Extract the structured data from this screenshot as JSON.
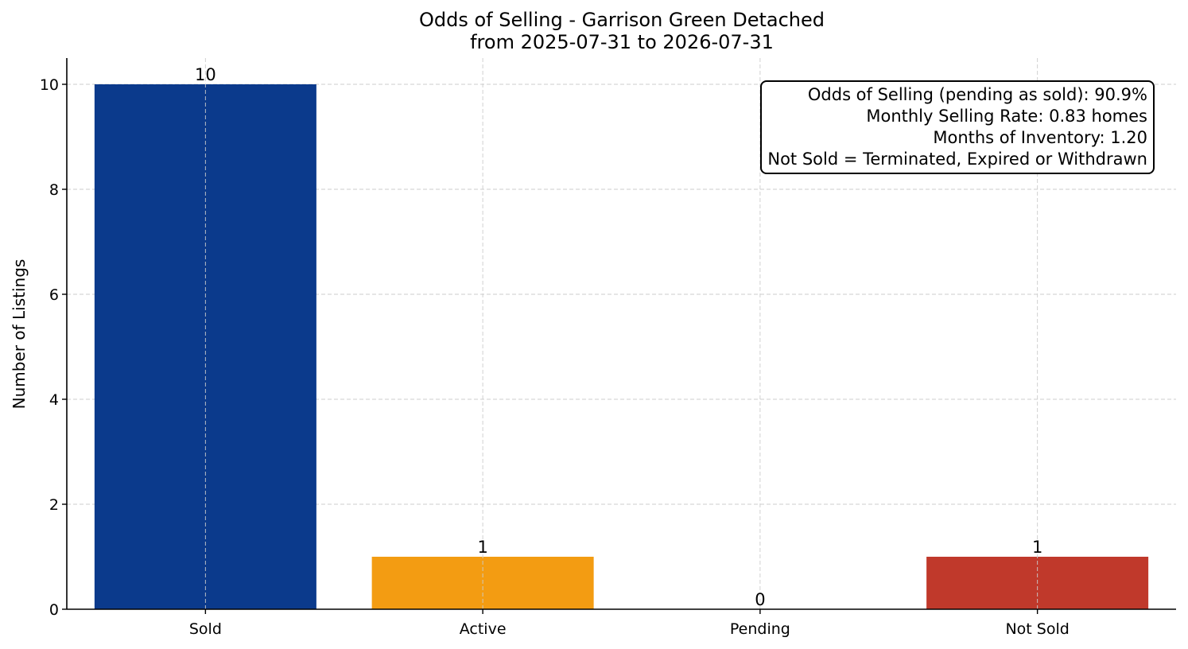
{
  "title_line1": "Odds of Selling - Garrison Green Detached",
  "title_line2": "from 2025-07-31 to 2026-07-31",
  "chart_data": {
    "type": "bar",
    "title": "Odds of Selling - Garrison Green Detached\nfrom 2025-07-31 to 2026-07-31",
    "xlabel": "",
    "ylabel": "Number of Listings",
    "categories": [
      "Sold",
      "Active",
      "Pending",
      "Not Sold"
    ],
    "values": [
      10,
      1,
      0,
      1
    ],
    "data_labels": [
      "10",
      "1",
      "0",
      "1"
    ],
    "colors": [
      "#0b3a8c",
      "#f39c12",
      "#2e8b57",
      "#c0392b"
    ],
    "ylim": [
      0,
      10.5
    ],
    "yticks": [
      0,
      2,
      4,
      6,
      8,
      10
    ],
    "grid": true
  },
  "stats": {
    "line1": "Odds of Selling (pending as sold): 90.9%",
    "line2": "Monthly Selling Rate: 0.83 homes",
    "line3": "Months of Inventory: 1.20",
    "line4": "Not Sold = Terminated, Expired or Withdrawn"
  }
}
